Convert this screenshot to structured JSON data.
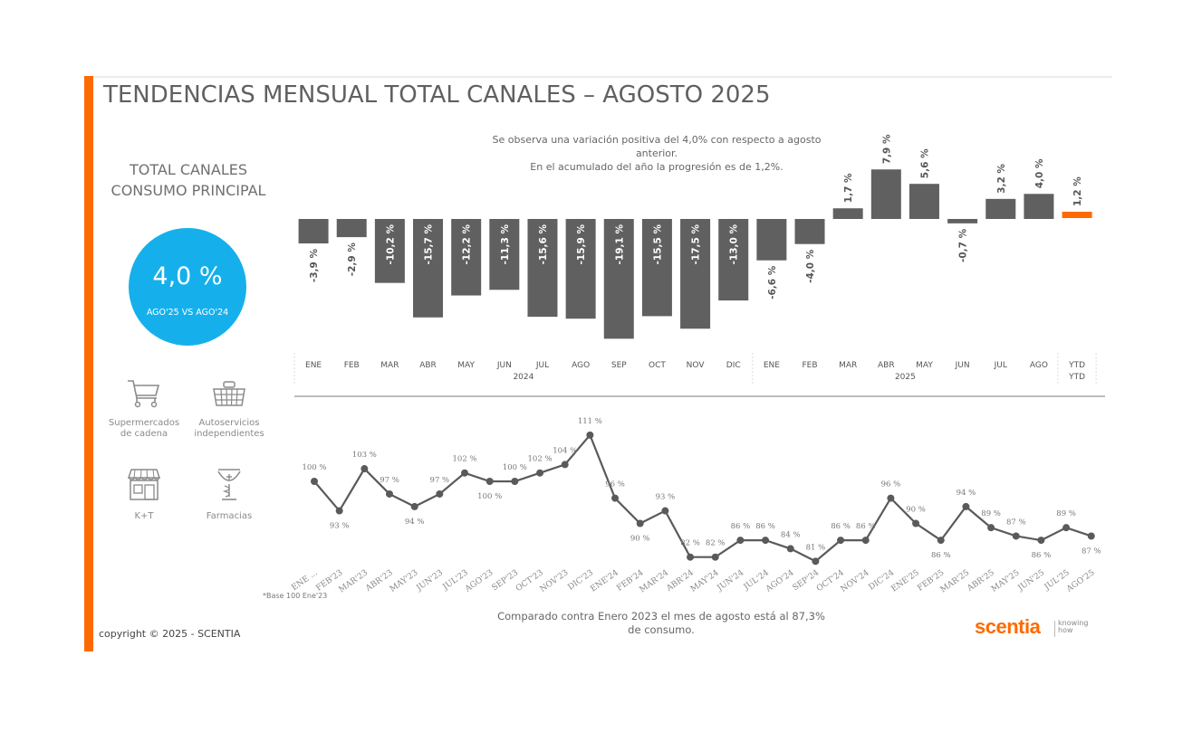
{
  "header": {
    "title": "TENDENCIAS MENSUAL TOTAL CANALES – AGOSTO 2025"
  },
  "left_panel": {
    "subtitle_line1": "TOTAL CANALES",
    "subtitle_line2": "CONSUMO PRINCIPAL",
    "kpi_value": "4,0 %",
    "kpi_caption": "AGO'25 VS AGO'24",
    "kpi_color": "#15b0ec",
    "channels": [
      {
        "icon": "shopping-cart-icon",
        "line1": "Supermercados",
        "line2": "de cadena"
      },
      {
        "icon": "shopping-basket-icon",
        "line1": "Autoservicios",
        "line2": "independientes"
      },
      {
        "icon": "storefront-icon",
        "line1": "K+T",
        "line2": ""
      },
      {
        "icon": "pharmacy-icon",
        "line1": "Farmacias",
        "line2": ""
      }
    ]
  },
  "notes": {
    "top_line1": "Se observa una variación positiva del 4,0% con respecto a agosto",
    "top_line2": "anterior.",
    "top_line3": "En el acumulado del año la progresión es de 1,2%.",
    "bottom_line1": "Comparado contra Enero 2023 el mes de agosto está al 87,3%",
    "bottom_line2": "de consumo.",
    "base_note": "*Base 100 Ene'23"
  },
  "footer": {
    "copyright": "copyright © 2025 - SCENTIA",
    "logo_text": "scentia",
    "logo_tag_line1": "knowing",
    "logo_tag_line2": "how"
  },
  "colors": {
    "accent": "#ff6a00",
    "bar": "#606060",
    "ytd_bar": "#ff6a00",
    "line": "#5a5a5a"
  },
  "chart_data": [
    {
      "type": "bar",
      "title": "",
      "xlabel": "",
      "ylabel": "",
      "categories": [
        "ENE",
        "FEB",
        "MAR",
        "ABR",
        "MAY",
        "JUN",
        "JUL",
        "AGO",
        "SEP",
        "OCT",
        "NOV",
        "DIC",
        "ENE",
        "FEB",
        "MAR",
        "ABR",
        "MAY",
        "JUN",
        "JUL",
        "AGO",
        "YTD"
      ],
      "groups": [
        {
          "label": "2024",
          "from": 0,
          "to": 11
        },
        {
          "label": "2025",
          "from": 12,
          "to": 19
        },
        {
          "label": "YTD",
          "from": 20,
          "to": 20
        }
      ],
      "values": [
        -3.9,
        -2.9,
        -10.2,
        -15.7,
        -12.2,
        -11.3,
        -15.6,
        -15.9,
        -19.1,
        -15.5,
        -17.5,
        -13.0,
        -6.6,
        -4.0,
        1.7,
        7.9,
        5.6,
        -0.7,
        3.2,
        4.0,
        1.2
      ],
      "labels": [
        "-3,9 %",
        "-2,9 %",
        "-10,2 %",
        "-15,7 %",
        "-12,2 %",
        "-11,3 %",
        "-15,6 %",
        "-15,9 %",
        "-19,1 %",
        "-15,5 %",
        "-17,5 %",
        "-13,0 %",
        "-6,6 %",
        "-4,0 %",
        "1,7 %",
        "7,9 %",
        "5,6 %",
        "-0,7 %",
        "3,2 %",
        "4,0 %",
        "1,2 %"
      ],
      "highlight_index": 20,
      "ylim": [
        -20,
        9
      ],
      "grid": false
    },
    {
      "type": "line",
      "title": "",
      "xlabel": "",
      "ylabel": "",
      "x": [
        "ENE ...",
        "FEB'23",
        "MAR'23",
        "ABR'23",
        "MAY'23",
        "JUN'23",
        "JUL'23",
        "AGO'23",
        "SEP'23",
        "OCT'23",
        "NOV'23",
        "DIC'23",
        "ENE'24",
        "FEB'24",
        "MAR'24",
        "ABR'24",
        "MAY'24",
        "JUN'24",
        "JUL'24",
        "AGO'24",
        "SEP'24",
        "OCT'24",
        "NOV'24",
        "DIC'24",
        "ENE'25",
        "FEB'25",
        "MAR'25",
        "ABR'25",
        "MAY'25",
        "JUN'25",
        "JUL'25",
        "AGO'25"
      ],
      "values": [
        100,
        93,
        103,
        97,
        94,
        97,
        102,
        100,
        100,
        102,
        104,
        111,
        96,
        90,
        93,
        82,
        82,
        86,
        86,
        84,
        81,
        86,
        86,
        96,
        90,
        86,
        94,
        89,
        87,
        86,
        89,
        87
      ],
      "labels": [
        "100 %",
        "93 %",
        "103 %",
        "97 %",
        "94 %",
        "97 %",
        "102 %",
        "100 %",
        "100 %",
        "102 %",
        "104 %",
        "111 %",
        "96 %",
        "90 %",
        "93 %",
        "82 %",
        "82 %",
        "86 %",
        "86 %",
        "84 %",
        "81 %",
        "86 %",
        "86 %",
        "96 %",
        "90 %",
        "86 %",
        "94 %",
        "89 %",
        "87 %",
        "86 %",
        "89 %",
        "87 %"
      ],
      "label_position": [
        "above",
        "below",
        "above",
        "above",
        "below",
        "above",
        "above",
        "below",
        "above",
        "above",
        "above",
        "above",
        "above",
        "below",
        "above",
        "above",
        "above",
        "above",
        "above",
        "above",
        "above",
        "above",
        "above",
        "above",
        "above",
        "below",
        "above",
        "above",
        "above",
        "below",
        "above",
        "below"
      ],
      "ylim": [
        78,
        113
      ],
      "grid": false,
      "note": "*Base 100 Ene'23"
    }
  ]
}
